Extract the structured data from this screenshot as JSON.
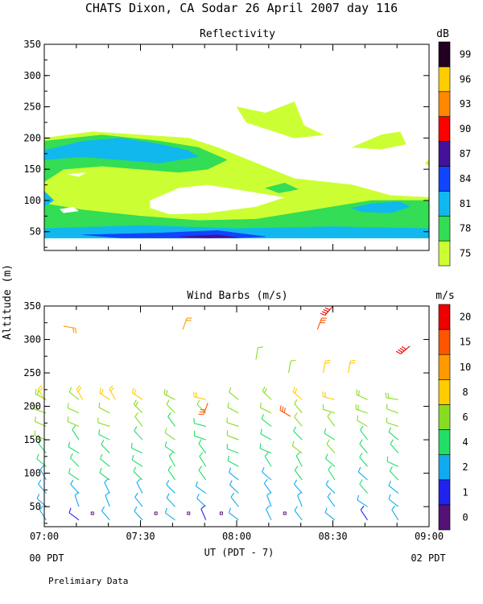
{
  "figure": {
    "title": "CHATS Dixon, CA  Sodar  26 April 2007  day 116",
    "shared_ylabel": "Altitude (m)",
    "xlabel": "UT  (PDT - 7)",
    "x_start_local": "00 PDT",
    "x_end_local": "02 PDT",
    "footer": "Prelimiary Data"
  },
  "chart_data": [
    {
      "type": "heatmap",
      "title": "Reflectivity",
      "x_ticks": [
        "07:00",
        "07:30",
        "08:00",
        "08:30",
        "09:00"
      ],
      "xlim_utc": [
        "07:00",
        "09:00"
      ],
      "ylim": [
        20,
        350
      ],
      "y_ticks": [
        50,
        100,
        150,
        200,
        250,
        300,
        350
      ],
      "colorbar": {
        "unit": "dB",
        "levels": [
          75,
          78,
          81,
          84,
          87,
          90,
          93,
          96,
          99
        ],
        "colors": [
          "#ccff33",
          "#33dd55",
          "#11b8ee",
          "#1144ff",
          "#441199",
          "#ff0000",
          "#ff8800",
          "#ffcc00",
          "#220022"
        ]
      },
      "contours": [
        {
          "level": 75,
          "color": "#ccff33",
          "points": [
            [
              7.0,
              200
            ],
            [
              7.25,
              210
            ],
            [
              7.5,
              205
            ],
            [
              7.75,
              200
            ],
            [
              7.9,
              185
            ],
            [
              8.1,
              160
            ],
            [
              8.3,
              135
            ],
            [
              8.6,
              125
            ],
            [
              8.8,
              108
            ],
            [
              9.0,
              105
            ],
            [
              9.0,
              40
            ],
            [
              7.0,
              40
            ]
          ]
        },
        {
          "level": 75,
          "color": "#ccff33",
          "points": [
            [
              8.0,
              250
            ],
            [
              8.15,
              240
            ],
            [
              8.3,
              258
            ],
            [
              8.35,
              220
            ],
            [
              8.45,
              205
            ],
            [
              8.3,
              200
            ],
            [
              8.15,
              215
            ],
            [
              8.05,
              225
            ]
          ]
        },
        {
          "level": 75,
          "color": "#ccff33",
          "points": [
            [
              8.6,
              185
            ],
            [
              8.75,
              205
            ],
            [
              8.85,
              210
            ],
            [
              8.88,
              190
            ],
            [
              8.75,
              182
            ]
          ]
        },
        {
          "level": 75,
          "color": "#ccff33",
          "points": [
            [
              8.98,
              160
            ],
            [
              9.0,
              155
            ],
            [
              9.0,
              165
            ]
          ]
        },
        {
          "level": 78,
          "color": "#33dd55",
          "points": [
            [
              7.0,
              195
            ],
            [
              7.3,
              205
            ],
            [
              7.6,
              195
            ],
            [
              7.8,
              185
            ],
            [
              7.95,
              165
            ],
            [
              7.85,
              150
            ],
            [
              7.7,
              145
            ],
            [
              7.5,
              150
            ],
            [
              7.3,
              155
            ],
            [
              7.1,
              150
            ],
            [
              7.0,
              130
            ]
          ]
        },
        {
          "level": 78,
          "color": "#33dd55",
          "points": [
            [
              7.0,
              95
            ],
            [
              7.2,
              85
            ],
            [
              7.5,
              75
            ],
            [
              7.8,
              68
            ],
            [
              8.1,
              70
            ],
            [
              8.4,
              85
            ],
            [
              8.7,
              100
            ],
            [
              9.0,
              100
            ],
            [
              9.0,
              40
            ],
            [
              7.0,
              40
            ]
          ]
        },
        {
          "level": 78,
          "color": "#33dd55",
          "points": [
            [
              8.15,
              120
            ],
            [
              8.25,
              128
            ],
            [
              8.32,
              118
            ],
            [
              8.22,
              112
            ]
          ]
        },
        {
          "level": 81,
          "color": "#11b8ee",
          "points": [
            [
              7.0,
              180
            ],
            [
              7.2,
              195
            ],
            [
              7.4,
              200
            ],
            [
              7.6,
              190
            ],
            [
              7.75,
              180
            ],
            [
              7.8,
              170
            ],
            [
              7.6,
              160
            ],
            [
              7.4,
              165
            ],
            [
              7.2,
              170
            ],
            [
              7.0,
              165
            ]
          ]
        },
        {
          "level": 81,
          "color": "#11b8ee",
          "points": [
            [
              7.0,
              115
            ],
            [
              7.05,
              100
            ],
            [
              7.0,
              90
            ]
          ]
        },
        {
          "level": 81,
          "color": "#11b8ee",
          "points": [
            [
              8.6,
              88
            ],
            [
              8.7,
              95
            ],
            [
              8.85,
              98
            ],
            [
              8.9,
              90
            ],
            [
              8.8,
              80
            ],
            [
              8.65,
              82
            ]
          ]
        },
        {
          "level": 81,
          "color": "#11b8ee",
          "points": [
            [
              7.0,
              55
            ],
            [
              7.5,
              60
            ],
            [
              8.0,
              55
            ],
            [
              8.5,
              58
            ],
            [
              9.0,
              55
            ],
            [
              9.0,
              40
            ],
            [
              7.0,
              40
            ]
          ]
        },
        {
          "level": 84,
          "color": "#1144ff",
          "points": [
            [
              7.2,
              45
            ],
            [
              7.6,
              48
            ],
            [
              7.9,
              52
            ],
            [
              8.15,
              42
            ],
            [
              8.0,
              40
            ],
            [
              7.4,
              40
            ]
          ]
        },
        {
          "level": 87,
          "color": "#441199",
          "points": [
            [
              7.7,
              42
            ],
            [
              7.9,
              45
            ],
            [
              8.0,
              41
            ],
            [
              7.85,
              40
            ]
          ]
        }
      ],
      "holes": [
        {
          "points": [
            [
              7.55,
              100
            ],
            [
              7.7,
              120
            ],
            [
              7.85,
              125
            ],
            [
              8.05,
              115
            ],
            [
              8.25,
              105
            ],
            [
              8.1,
              90
            ],
            [
              7.85,
              80
            ],
            [
              7.65,
              78
            ],
            [
              7.55,
              88
            ]
          ]
        },
        {
          "points": [
            [
              7.12,
              142
            ],
            [
              7.22,
              145
            ],
            [
              7.18,
              138
            ]
          ]
        },
        {
          "points": [
            [
              7.08,
              86
            ],
            [
              7.15,
              90
            ],
            [
              7.18,
              83
            ],
            [
              7.1,
              80
            ]
          ]
        },
        {
          "points": [
            [
              8.45,
              205
            ],
            [
              8.65,
              200
            ],
            [
              8.6,
              185
            ]
          ]
        }
      ]
    },
    {
      "type": "scatter",
      "title": "Wind Barbs (m/s)",
      "x_ticks": [
        "07:00",
        "07:30",
        "08:00",
        "08:30",
        "09:00"
      ],
      "xlim_utc": [
        "07:00",
        "09:00"
      ],
      "ylim": [
        20,
        350
      ],
      "y_ticks": [
        50,
        100,
        150,
        200,
        250,
        300,
        350
      ],
      "colorbar": {
        "unit": "m/s",
        "levels": [
          0,
          1,
          2,
          4,
          6,
          8,
          10,
          15,
          20
        ],
        "colors": [
          "#551177",
          "#2222ee",
          "#11aaee",
          "#22dd66",
          "#88dd22",
          "#ffcc00",
          "#ff9900",
          "#ff5500",
          "#ee0000"
        ]
      },
      "barb_times_utc": [
        7.0,
        7.17,
        7.33,
        7.5,
        7.67,
        7.83,
        8.0,
        8.17,
        8.33,
        8.5,
        8.67,
        8.83
      ],
      "barb_heights": [
        30,
        50,
        70,
        90,
        110,
        130,
        150,
        170,
        190,
        210
      ],
      "high_barbs": [
        {
          "t": 7.1,
          "z": 320,
          "speed": 10,
          "dir": 100
        },
        {
          "t": 7.72,
          "z": 315,
          "speed": 12,
          "dir": 20
        },
        {
          "t": 8.5,
          "z": 350,
          "speed": 20,
          "dir": 220
        },
        {
          "t": 8.42,
          "z": 315,
          "speed": 15,
          "dir": 20
        },
        {
          "t": 8.9,
          "z": 290,
          "speed": 20,
          "dir": 230
        },
        {
          "t": 7.85,
          "z": 205,
          "speed": 15,
          "dir": 200
        },
        {
          "t": 8.28,
          "z": 185,
          "speed": 15,
          "dir": 300
        },
        {
          "t": 8.1,
          "z": 270,
          "speed": 6,
          "dir": 10
        },
        {
          "t": 8.27,
          "z": 250,
          "speed": 6,
          "dir": 10
        },
        {
          "t": 8.45,
          "z": 250,
          "speed": 8,
          "dir": 10
        },
        {
          "t": 8.58,
          "z": 250,
          "speed": 8,
          "dir": 10
        },
        {
          "t": 7.0,
          "z": 210,
          "speed": 8,
          "dir": 330
        },
        {
          "t": 7.2,
          "z": 210,
          "speed": 8,
          "dir": 330
        },
        {
          "t": 7.37,
          "z": 210,
          "speed": 8,
          "dir": 330
        }
      ],
      "calm_points_utc": [
        7.25,
        7.58,
        7.75,
        7.92,
        8.25
      ]
    }
  ]
}
